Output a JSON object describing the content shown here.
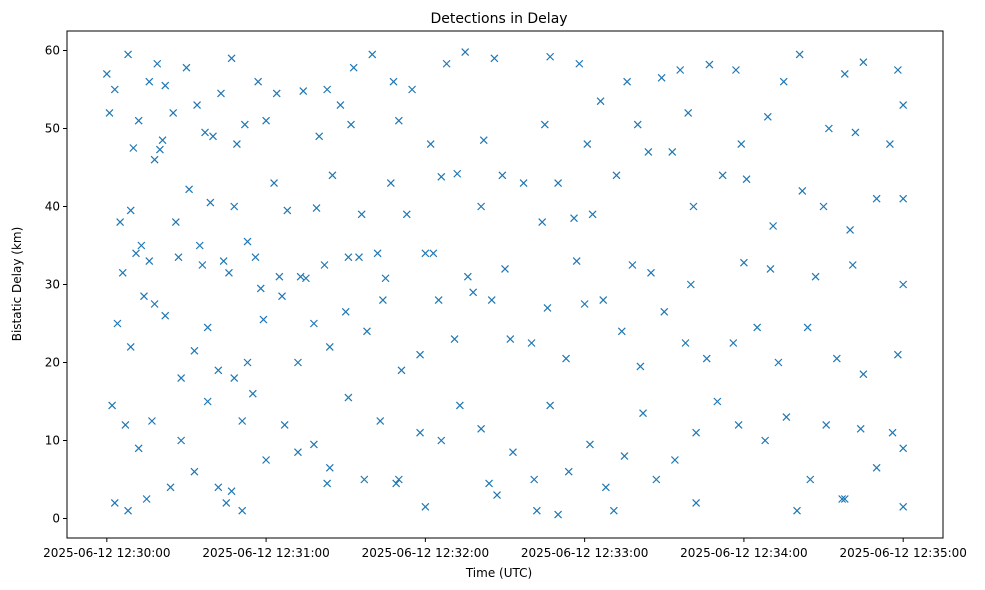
{
  "chart_data": {
    "type": "scatter",
    "title": "Detections in Delay",
    "xlabel": "Time (UTC)",
    "ylabel": "Bistatic Delay (km)",
    "marker": "x",
    "marker_color": "#1f77b4",
    "grid": false,
    "legend": "none",
    "xlim": [
      "2025-06-12 12:29:45",
      "2025-06-12 12:35:15"
    ],
    "ylim": [
      -2.5,
      62.5
    ],
    "x_ticks": [
      "2025-06-12 12:30:00",
      "2025-06-12 12:31:00",
      "2025-06-12 12:32:00",
      "2025-06-12 12:33:00",
      "2025-06-12 12:34:00",
      "2025-06-12 12:35:00"
    ],
    "y_ticks": [
      0,
      10,
      20,
      30,
      40,
      50,
      60
    ],
    "points": [
      [
        "2025-06-12 12:30:00",
        57
      ],
      [
        "2025-06-12 12:30:01",
        52
      ],
      [
        "2025-06-12 12:30:03",
        55
      ],
      [
        "2025-06-12 12:30:08",
        59.5
      ],
      [
        "2025-06-12 12:30:12",
        51
      ],
      [
        "2025-06-12 12:30:16",
        56
      ],
      [
        "2025-06-12 12:30:19",
        58.3
      ],
      [
        "2025-06-12 12:30:22",
        55.5
      ],
      [
        "2025-06-12 12:30:25",
        52
      ],
      [
        "2025-06-12 12:30:30",
        57.8
      ],
      [
        "2025-06-12 12:30:34",
        53
      ],
      [
        "2025-06-12 12:30:40",
        49
      ],
      [
        "2025-06-12 12:30:43",
        54.5
      ],
      [
        "2025-06-12 12:30:47",
        59
      ],
      [
        "2025-06-12 12:30:52",
        50.5
      ],
      [
        "2025-06-12 12:30:57",
        56
      ],
      [
        "2025-06-12 12:31:04",
        54.5
      ],
      [
        "2025-06-12 12:31:14",
        54.8
      ],
      [
        "2025-06-12 12:31:23",
        55
      ],
      [
        "2025-06-12 12:31:28",
        53
      ],
      [
        "2025-06-12 12:31:33",
        57.8
      ],
      [
        "2025-06-12 12:31:40",
        59.5
      ],
      [
        "2025-06-12 12:31:48",
        56
      ],
      [
        "2025-06-12 12:31:55",
        55
      ],
      [
        "2025-06-12 12:32:08",
        58.3
      ],
      [
        "2025-06-12 12:32:15",
        59.8
      ],
      [
        "2025-06-12 12:32:26",
        59
      ],
      [
        "2025-06-12 12:32:47",
        59.2
      ],
      [
        "2025-06-12 12:32:58",
        58.3
      ],
      [
        "2025-06-12 12:33:06",
        53.5
      ],
      [
        "2025-06-12 12:33:16",
        56
      ],
      [
        "2025-06-12 12:33:29",
        56.5
      ],
      [
        "2025-06-12 12:33:36",
        57.5
      ],
      [
        "2025-06-12 12:33:47",
        58.2
      ],
      [
        "2025-06-12 12:33:57",
        57.5
      ],
      [
        "2025-06-12 12:34:15",
        56
      ],
      [
        "2025-06-12 12:34:21",
        59.5
      ],
      [
        "2025-06-12 12:34:38",
        57
      ],
      [
        "2025-06-12 12:34:45",
        58.5
      ],
      [
        "2025-06-12 12:34:58",
        57.5
      ],
      [
        "2025-06-12 12:35:00",
        53
      ],
      [
        "2025-06-12 12:30:05",
        38
      ],
      [
        "2025-06-12 12:30:09",
        39.5
      ],
      [
        "2025-06-12 12:30:13",
        35
      ],
      [
        "2025-06-12 12:30:18",
        46
      ],
      [
        "2025-06-12 12:30:21",
        48.5
      ],
      [
        "2025-06-12 12:30:26",
        38
      ],
      [
        "2025-06-12 12:30:31",
        42.2
      ],
      [
        "2025-06-12 12:30:35",
        35
      ],
      [
        "2025-06-12 12:30:39",
        40.5
      ],
      [
        "2025-06-12 12:30:44",
        33
      ],
      [
        "2025-06-12 12:30:48",
        40
      ],
      [
        "2025-06-12 12:30:53",
        35.5
      ],
      [
        "2025-06-12 12:30:58",
        29.5
      ],
      [
        "2025-06-12 12:31:03",
        43
      ],
      [
        "2025-06-12 12:31:08",
        39.5
      ],
      [
        "2025-06-12 12:31:13",
        31
      ],
      [
        "2025-06-12 12:31:19",
        39.8
      ],
      [
        "2025-06-12 12:31:25",
        44
      ],
      [
        "2025-06-12 12:31:31",
        33.5
      ],
      [
        "2025-06-12 12:31:36",
        39
      ],
      [
        "2025-06-12 12:31:42",
        34
      ],
      [
        "2025-06-12 12:31:47",
        43
      ],
      [
        "2025-06-12 12:31:53",
        39
      ],
      [
        "2025-06-12 12:32:00",
        34
      ],
      [
        "2025-06-12 12:32:06",
        43.8
      ],
      [
        "2025-06-12 12:32:12",
        44.2
      ],
      [
        "2025-06-12 12:32:21",
        40
      ],
      [
        "2025-06-12 12:32:29",
        44
      ],
      [
        "2025-06-12 12:32:37",
        43
      ],
      [
        "2025-06-12 12:32:44",
        38
      ],
      [
        "2025-06-12 12:32:50",
        43
      ],
      [
        "2025-06-12 12:32:56",
        38.5
      ],
      [
        "2025-06-12 12:33:03",
        39
      ],
      [
        "2025-06-12 12:33:12",
        44
      ],
      [
        "2025-06-12 12:33:24",
        47
      ],
      [
        "2025-06-12 12:33:33",
        47
      ],
      [
        "2025-06-12 12:33:41",
        40
      ],
      [
        "2025-06-12 12:33:52",
        44
      ],
      [
        "2025-06-12 12:34:01",
        43.5
      ],
      [
        "2025-06-12 12:34:11",
        37.5
      ],
      [
        "2025-06-12 12:34:22",
        42
      ],
      [
        "2025-06-12 12:34:30",
        40
      ],
      [
        "2025-06-12 12:34:40",
        37
      ],
      [
        "2025-06-12 12:34:50",
        41
      ],
      [
        "2025-06-12 12:35:00",
        41
      ],
      [
        "2025-06-12 12:30:04",
        25
      ],
      [
        "2025-06-12 12:30:09",
        22
      ],
      [
        "2025-06-12 12:30:14",
        28.5
      ],
      [
        "2025-06-12 12:30:18",
        27.5
      ],
      [
        "2025-06-12 12:30:22",
        26
      ],
      [
        "2025-06-12 12:30:28",
        18
      ],
      [
        "2025-06-12 12:30:33",
        21.5
      ],
      [
        "2025-06-12 12:30:38",
        24.5
      ],
      [
        "2025-06-12 12:30:42",
        19
      ],
      [
        "2025-06-12 12:30:48",
        18
      ],
      [
        "2025-06-12 12:30:53",
        20
      ],
      [
        "2025-06-12 12:30:59",
        25.5
      ],
      [
        "2025-06-12 12:31:06",
        28.5
      ],
      [
        "2025-06-12 12:31:12",
        20
      ],
      [
        "2025-06-12 12:31:18",
        25
      ],
      [
        "2025-06-12 12:31:24",
        22
      ],
      [
        "2025-06-12 12:31:30",
        26.5
      ],
      [
        "2025-06-12 12:31:38",
        24
      ],
      [
        "2025-06-12 12:31:44",
        28
      ],
      [
        "2025-06-12 12:31:51",
        19
      ],
      [
        "2025-06-12 12:31:58",
        21
      ],
      [
        "2025-06-12 12:32:05",
        28
      ],
      [
        "2025-06-12 12:32:11",
        23
      ],
      [
        "2025-06-12 12:32:18",
        29
      ],
      [
        "2025-06-12 12:32:25",
        28
      ],
      [
        "2025-06-12 12:32:32",
        23
      ],
      [
        "2025-06-12 12:32:40",
        22.5
      ],
      [
        "2025-06-12 12:32:46",
        27
      ],
      [
        "2025-06-12 12:32:53",
        20.5
      ],
      [
        "2025-06-12 12:33:00",
        27.5
      ],
      [
        "2025-06-12 12:33:07",
        28
      ],
      [
        "2025-06-12 12:33:14",
        24
      ],
      [
        "2025-06-12 12:33:21",
        19.5
      ],
      [
        "2025-06-12 12:33:30",
        26.5
      ],
      [
        "2025-06-12 12:33:38",
        22.5
      ],
      [
        "2025-06-12 12:33:46",
        20.5
      ],
      [
        "2025-06-12 12:33:56",
        22.5
      ],
      [
        "2025-06-12 12:34:05",
        24.5
      ],
      [
        "2025-06-12 12:34:13",
        20
      ],
      [
        "2025-06-12 12:34:24",
        24.5
      ],
      [
        "2025-06-12 12:34:35",
        20.5
      ],
      [
        "2025-06-12 12:34:45",
        18.5
      ],
      [
        "2025-06-12 12:34:58",
        21
      ],
      [
        "2025-06-12 12:30:02",
        14.5
      ],
      [
        "2025-06-12 12:30:07",
        12
      ],
      [
        "2025-06-12 12:30:12",
        9
      ],
      [
        "2025-06-12 12:30:17",
        12.5
      ],
      [
        "2025-06-12 12:30:24",
        4
      ],
      [
        "2025-06-12 12:30:28",
        10
      ],
      [
        "2025-06-12 12:30:33",
        6
      ],
      [
        "2025-06-12 12:30:38",
        15
      ],
      [
        "2025-06-12 12:30:42",
        4
      ],
      [
        "2025-06-12 12:30:47",
        3.5
      ],
      [
        "2025-06-12 12:30:51",
        12.5
      ],
      [
        "2025-06-12 12:30:55",
        16
      ],
      [
        "2025-06-12 12:31:00",
        7.5
      ],
      [
        "2025-06-12 12:31:07",
        12
      ],
      [
        "2025-06-12 12:31:12",
        8.5
      ],
      [
        "2025-06-12 12:31:18",
        9.5
      ],
      [
        "2025-06-12 12:31:24",
        6.5
      ],
      [
        "2025-06-12 12:31:31",
        15.5
      ],
      [
        "2025-06-12 12:31:37",
        5
      ],
      [
        "2025-06-12 12:31:43",
        12.5
      ],
      [
        "2025-06-12 12:31:50",
        5
      ],
      [
        "2025-06-12 12:31:58",
        11
      ],
      [
        "2025-06-12 12:32:06",
        10
      ],
      [
        "2025-06-12 12:32:13",
        14.5
      ],
      [
        "2025-06-12 12:32:21",
        11.5
      ],
      [
        "2025-06-12 12:32:27",
        3
      ],
      [
        "2025-06-12 12:32:33",
        8.5
      ],
      [
        "2025-06-12 12:32:41",
        5
      ],
      [
        "2025-06-12 12:32:47",
        14.5
      ],
      [
        "2025-06-12 12:32:54",
        6
      ],
      [
        "2025-06-12 12:33:02",
        9.5
      ],
      [
        "2025-06-12 12:33:08",
        4
      ],
      [
        "2025-06-12 12:33:15",
        8
      ],
      [
        "2025-06-12 12:33:22",
        13.5
      ],
      [
        "2025-06-12 12:33:27",
        5
      ],
      [
        "2025-06-12 12:33:34",
        7.5
      ],
      [
        "2025-06-12 12:33:42",
        11
      ],
      [
        "2025-06-12 12:33:50",
        15
      ],
      [
        "2025-06-12 12:33:58",
        12
      ],
      [
        "2025-06-12 12:34:08",
        10
      ],
      [
        "2025-06-12 12:34:16",
        13
      ],
      [
        "2025-06-12 12:34:25",
        5
      ],
      [
        "2025-06-12 12:34:31",
        12
      ],
      [
        "2025-06-12 12:34:37",
        2.5
      ],
      [
        "2025-06-12 12:34:44",
        11.5
      ],
      [
        "2025-06-12 12:34:50",
        6.5
      ],
      [
        "2025-06-12 12:34:56",
        11
      ],
      [
        "2025-06-12 12:35:00",
        9
      ],
      [
        "2025-06-12 12:30:03",
        2
      ],
      [
        "2025-06-12 12:30:08",
        1
      ],
      [
        "2025-06-12 12:30:15",
        2.5
      ],
      [
        "2025-06-12 12:30:45",
        2
      ],
      [
        "2025-06-12 12:30:51",
        1
      ],
      [
        "2025-06-12 12:31:23",
        4.5
      ],
      [
        "2025-06-12 12:31:49",
        4.5
      ],
      [
        "2025-06-12 12:32:00",
        1.5
      ],
      [
        "2025-06-12 12:32:24",
        4.5
      ],
      [
        "2025-06-12 12:32:42",
        1
      ],
      [
        "2025-06-12 12:32:50",
        0.5
      ],
      [
        "2025-06-12 12:33:11",
        1
      ],
      [
        "2025-06-12 12:33:42",
        2
      ],
      [
        "2025-06-12 12:34:20",
        1
      ],
      [
        "2025-06-12 12:34:38",
        2.5
      ],
      [
        "2025-06-12 12:35:00",
        1.5
      ],
      [
        "2025-06-12 12:30:06",
        31.5
      ],
      [
        "2025-06-12 12:30:11",
        34
      ],
      [
        "2025-06-12 12:30:16",
        33
      ],
      [
        "2025-06-12 12:30:27",
        33.5
      ],
      [
        "2025-06-12 12:30:36",
        32.5
      ],
      [
        "2025-06-12 12:30:46",
        31.5
      ],
      [
        "2025-06-12 12:30:56",
        33.5
      ],
      [
        "2025-06-12 12:31:05",
        31
      ],
      [
        "2025-06-12 12:31:15",
        30.8
      ],
      [
        "2025-06-12 12:31:22",
        32.5
      ],
      [
        "2025-06-12 12:31:35",
        33.5
      ],
      [
        "2025-06-12 12:31:45",
        30.8
      ],
      [
        "2025-06-12 12:32:03",
        34
      ],
      [
        "2025-06-12 12:32:16",
        31
      ],
      [
        "2025-06-12 12:32:30",
        32
      ],
      [
        "2025-06-12 12:32:57",
        33
      ],
      [
        "2025-06-12 12:33:18",
        32.5
      ],
      [
        "2025-06-12 12:33:25",
        31.5
      ],
      [
        "2025-06-12 12:33:40",
        30
      ],
      [
        "2025-06-12 12:34:00",
        32.8
      ],
      [
        "2025-06-12 12:34:10",
        32
      ],
      [
        "2025-06-12 12:34:27",
        31
      ],
      [
        "2025-06-12 12:34:41",
        32.5
      ],
      [
        "2025-06-12 12:35:00",
        30
      ],
      [
        "2025-06-12 12:30:10",
        47.5
      ],
      [
        "2025-06-12 12:30:20",
        47.3
      ],
      [
        "2025-06-12 12:30:37",
        49.5
      ],
      [
        "2025-06-12 12:30:49",
        48
      ],
      [
        "2025-06-12 12:31:00",
        51
      ],
      [
        "2025-06-12 12:31:20",
        49
      ],
      [
        "2025-06-12 12:31:32",
        50.5
      ],
      [
        "2025-06-12 12:31:50",
        51
      ],
      [
        "2025-06-12 12:32:02",
        48
      ],
      [
        "2025-06-12 12:32:22",
        48.5
      ],
      [
        "2025-06-12 12:32:45",
        50.5
      ],
      [
        "2025-06-12 12:33:01",
        48
      ],
      [
        "2025-06-12 12:33:20",
        50.5
      ],
      [
        "2025-06-12 12:33:39",
        52
      ],
      [
        "2025-06-12 12:33:59",
        48
      ],
      [
        "2025-06-12 12:34:09",
        51.5
      ],
      [
        "2025-06-12 12:34:32",
        50
      ],
      [
        "2025-06-12 12:34:42",
        49.5
      ],
      [
        "2025-06-12 12:34:55",
        48
      ]
    ]
  }
}
